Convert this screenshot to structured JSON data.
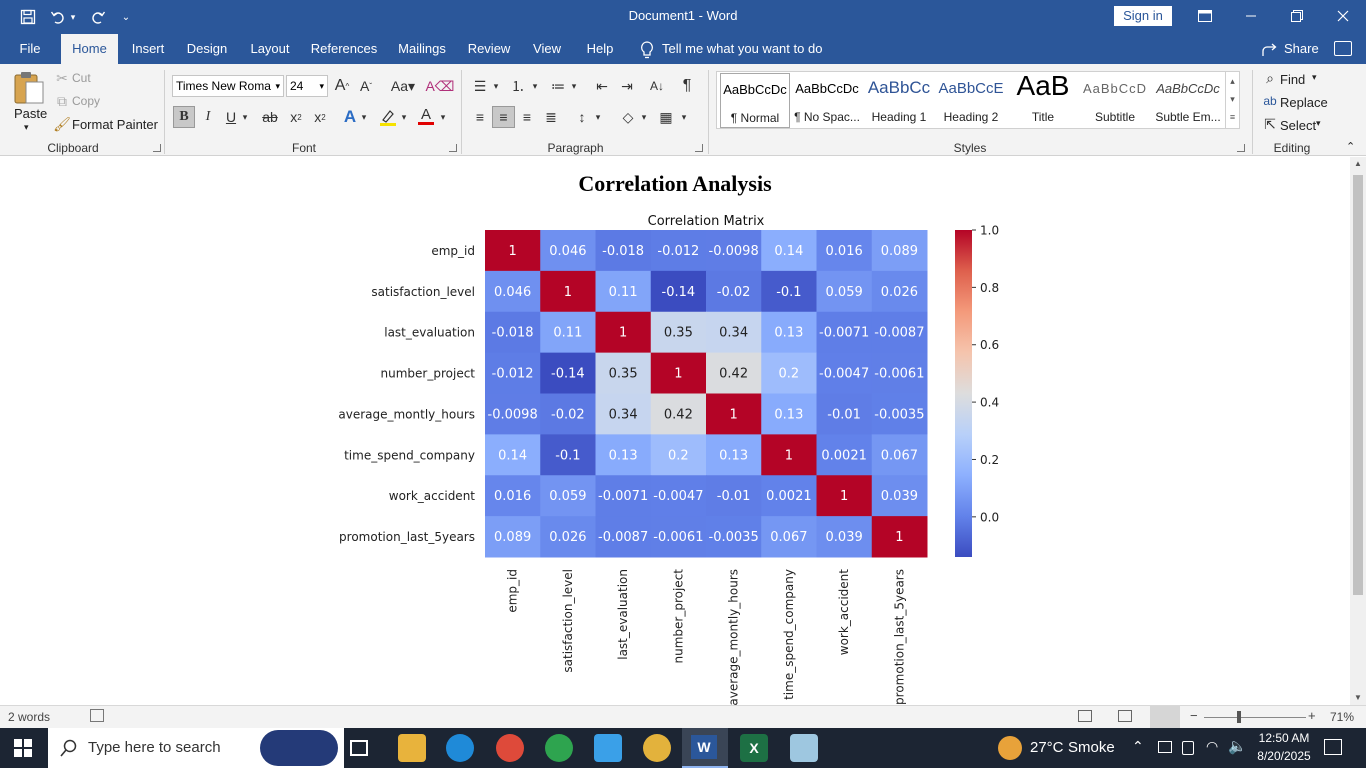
{
  "window": {
    "title": "Document1 - Word",
    "sign_in": "Sign in"
  },
  "tabs": [
    "File",
    "Home",
    "Insert",
    "Design",
    "Layout",
    "References",
    "Mailings",
    "Review",
    "View",
    "Help"
  ],
  "active_tab": "Home",
  "tell_me": "Tell me what you want to do",
  "share": "Share",
  "clipboard": {
    "paste": "Paste",
    "cut": "Cut",
    "copy": "Copy",
    "format_painter": "Format Painter",
    "group": "Clipboard"
  },
  "font": {
    "name": "Times New Roma",
    "size": "24",
    "group": "Font"
  },
  "paragraph": {
    "group": "Paragraph"
  },
  "styles": {
    "items": [
      {
        "sample": "AaBbCcDc",
        "name": "¶ Normal"
      },
      {
        "sample": "AaBbCcDc",
        "name": "¶ No Spac..."
      },
      {
        "sample": "AaBbCc",
        "name": "Heading 1"
      },
      {
        "sample": "AaBbCcE",
        "name": "Heading 2"
      },
      {
        "sample": "AaB",
        "name": "Title"
      },
      {
        "sample": "AaBbCcD",
        "name": "Subtitle"
      },
      {
        "sample": "AaBbCcDc",
        "name": "Subtle Em..."
      }
    ],
    "group": "Styles"
  },
  "editing": {
    "find": "Find",
    "replace": "Replace",
    "select": "Select",
    "group": "Editing"
  },
  "document": {
    "heading": "Correlation Analysis"
  },
  "chart_data": {
    "type": "heatmap",
    "title": "Correlation Matrix",
    "labels": [
      "emp_id",
      "satisfaction_level",
      "last_evaluation",
      "number_project",
      "average_montly_hours",
      "time_spend_company",
      "work_accident",
      "promotion_last_5years"
    ],
    "matrix": [
      [
        "1",
        "0.046",
        "-0.018",
        "-0.012",
        "-0.0098",
        "0.14",
        "0.016",
        "0.089"
      ],
      [
        "0.046",
        "1",
        "0.11",
        "-0.14",
        "-0.02",
        "-0.1",
        "0.059",
        "0.026"
      ],
      [
        "-0.018",
        "0.11",
        "1",
        "0.35",
        "0.34",
        "0.13",
        "-0.0071",
        "-0.0087"
      ],
      [
        "-0.012",
        "-0.14",
        "0.35",
        "1",
        "0.42",
        "0.2",
        "-0.0047",
        "-0.0061"
      ],
      [
        "-0.0098",
        "-0.02",
        "0.34",
        "0.42",
        "1",
        "0.13",
        "-0.01",
        "-0.0035"
      ],
      [
        "0.14",
        "-0.1",
        "0.13",
        "0.2",
        "0.13",
        "1",
        "0.0021",
        "0.067"
      ],
      [
        "0.016",
        "0.059",
        "-0.0071",
        "-0.0047",
        "-0.01",
        "0.0021",
        "1",
        "0.039"
      ],
      [
        "0.089",
        "0.026",
        "-0.0087",
        "-0.0061",
        "-0.0035",
        "0.067",
        "0.039",
        "1"
      ]
    ],
    "colorbar": {
      "min": -0.14,
      "max": 1.0,
      "ticks": [
        "0.0",
        "0.2",
        "0.4",
        "0.6",
        "0.8",
        "1.0"
      ],
      "colormap": "coolwarm"
    }
  },
  "status": {
    "words": "2 words",
    "zoom": "71%"
  },
  "taskbar": {
    "search_placeholder": "Type here to search",
    "weather_temp": "27°C",
    "weather_text": "Smoke",
    "time": "12:50 AM",
    "date": "8/20/2025"
  }
}
